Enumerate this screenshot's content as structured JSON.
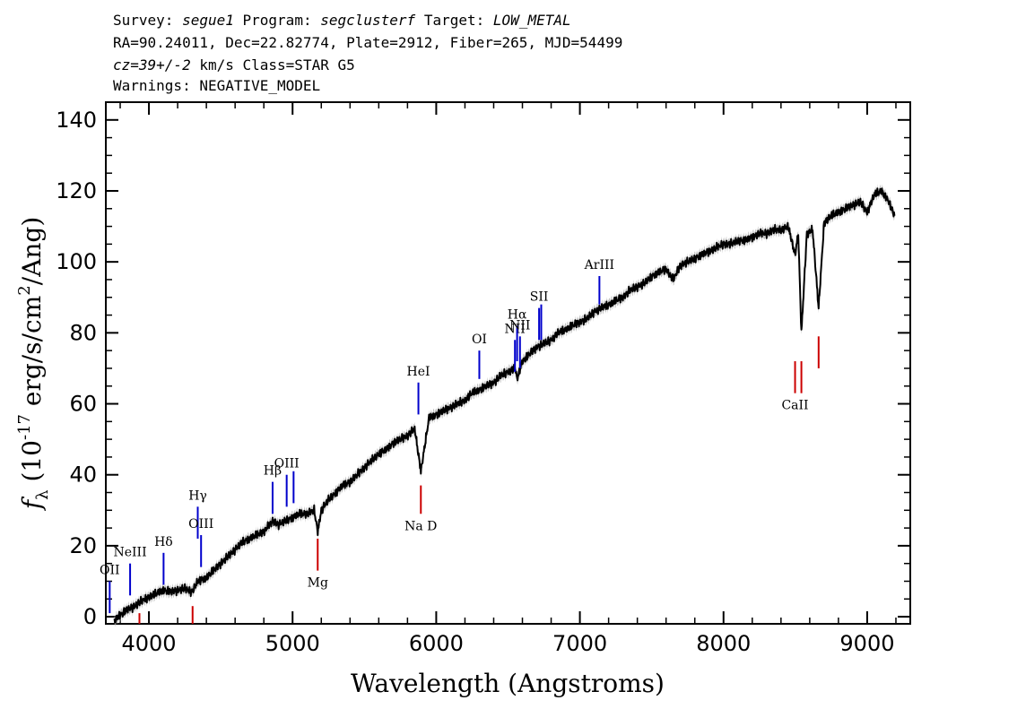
{
  "header": {
    "survey_label": "Survey:",
    "survey": "segue1",
    "program_label": "Program:",
    "program": "segclusterf",
    "target_label": "Target:",
    "target": "LOW_METAL",
    "line2": "RA=90.24011, Dec=22.82774, Plate=2912, Fiber=265, MJD=54499",
    "cz": "cz=39+/-2",
    "line3_rest": "km/s Class=STAR G5",
    "line4": "Warnings: NEGATIVE_MODEL"
  },
  "chart_data": {
    "type": "line",
    "xlabel": "Wavelength (Angstroms)",
    "ylabel": "f_λ (10^-17 erg/s/cm^2/Ang)",
    "xlim": [
      3700,
      9300
    ],
    "ylim": [
      -2,
      145
    ],
    "xticks": [
      4000,
      5000,
      6000,
      7000,
      8000,
      9000
    ],
    "yticks": [
      0,
      20,
      40,
      60,
      80,
      100,
      120,
      140
    ],
    "colors": {
      "spectrum": "#000000",
      "error_band": "#b0b0b0",
      "emission": "#0000cc",
      "absorption": "#cc0000"
    },
    "series": [
      {
        "x": [
          3760,
          3800,
          3850,
          3900,
          3950,
          4000,
          4050,
          4100,
          4150,
          4200,
          4250,
          4300,
          4340,
          4400,
          4450,
          4500,
          4550,
          4600,
          4650,
          4700,
          4750,
          4800,
          4861,
          4900,
          4950,
          5000,
          5050,
          5100,
          5150,
          5175,
          5200,
          5250,
          5300,
          5350,
          5400,
          5450,
          5500,
          5550,
          5600,
          5650,
          5700,
          5750,
          5800,
          5850,
          5893,
          5950,
          6000,
          6050,
          6100,
          6150,
          6200,
          6250,
          6300,
          6350,
          6400,
          6450,
          6500,
          6550,
          6563,
          6600,
          6650,
          6700,
          6750,
          6800,
          6850,
          6900,
          6950,
          7000,
          7050,
          7100,
          7150,
          7200,
          7250,
          7300,
          7350,
          7400,
          7450,
          7500,
          7550,
          7600,
          7650,
          7700,
          7750,
          7800,
          7850,
          7900,
          7950,
          8000,
          8050,
          8100,
          8150,
          8200,
          8250,
          8300,
          8350,
          8400,
          8450,
          8498,
          8520,
          8542,
          8580,
          8620,
          8662,
          8700,
          8750,
          8800,
          8850,
          8900,
          8950,
          9000,
          9050,
          9100,
          9150,
          9190
        ],
        "y": [
          -1,
          0.5,
          2,
          3,
          4.5,
          5.5,
          6.5,
          7.5,
          7,
          7.5,
          8,
          7,
          10,
          11,
          13,
          15,
          17,
          19,
          21,
          22,
          23,
          24,
          27,
          26,
          27,
          28,
          29,
          29,
          30,
          24,
          30,
          33,
          35,
          37,
          38,
          40,
          42,
          44,
          46,
          47,
          49,
          50,
          51,
          53,
          41,
          56,
          57,
          58,
          59,
          60,
          61,
          63,
          64,
          65,
          66,
          68,
          69,
          70,
          67,
          72,
          74,
          76,
          77,
          78,
          80,
          81,
          82,
          83,
          84,
          86,
          87,
          88,
          89,
          90,
          92,
          93,
          94,
          96,
          97,
          98,
          95,
          99,
          100,
          101,
          102,
          103,
          104,
          105,
          105,
          106,
          106,
          107,
          108,
          108,
          109,
          109,
          110,
          102,
          108,
          80,
          108,
          109,
          87,
          111,
          113,
          114,
          115,
          116,
          117,
          114,
          119,
          120,
          117,
          113
        ]
      }
    ],
    "line_markers": [
      {
        "label": "OII",
        "type": "emission",
        "x": 3727,
        "y_lo": 1,
        "y_hi": 10
      },
      {
        "label": "NeIII",
        "type": "emission",
        "x": 3869,
        "y_lo": 6,
        "y_hi": 15
      },
      {
        "label": "Hδ",
        "type": "emission",
        "x": 4102,
        "y_lo": 9,
        "y_hi": 18
      },
      {
        "label": "Hγ",
        "type": "emission",
        "x": 4340,
        "y_lo": 22,
        "y_hi": 31
      },
      {
        "label": "OIII",
        "type": "emission",
        "x": 4363,
        "y_lo": 14,
        "y_hi": 23
      },
      {
        "label": "Hβ",
        "type": "emission",
        "x": 4861,
        "y_lo": 29,
        "y_hi": 38
      },
      {
        "label": "OIII",
        "type": "emission",
        "x": 4959,
        "y_lo": 31,
        "y_hi": 40
      },
      {
        "label": "",
        "type": "emission",
        "x": 5007,
        "y_lo": 32,
        "y_hi": 41
      },
      {
        "label": "HeI",
        "type": "emission",
        "x": 5876,
        "y_lo": 57,
        "y_hi": 66
      },
      {
        "label": "OI",
        "type": "emission",
        "x": 6300,
        "y_lo": 67,
        "y_hi": 75
      },
      {
        "label": "NII",
        "type": "emission",
        "x": 6548,
        "y_lo": 69,
        "y_hi": 78
      },
      {
        "label": "Hα",
        "type": "emission",
        "x": 6563,
        "y_lo": 72,
        "y_hi": 82
      },
      {
        "label": "NII",
        "type": "emission",
        "x": 6583,
        "y_lo": 70,
        "y_hi": 79
      },
      {
        "label": "SII",
        "type": "emission",
        "x": 6716,
        "y_lo": 78,
        "y_hi": 87
      },
      {
        "label": "",
        "type": "emission",
        "x": 6731,
        "y_lo": 78,
        "y_hi": 88
      },
      {
        "label": "ArIII",
        "type": "emission",
        "x": 7136,
        "y_lo": 88,
        "y_hi": 96
      },
      {
        "label": "",
        "type": "absorption",
        "x": 3934,
        "y_lo": -2,
        "y_hi": 1
      },
      {
        "label": "",
        "type": "absorption",
        "x": 4304,
        "y_lo": -2,
        "y_hi": 3
      },
      {
        "label": "Mg",
        "type": "absorption",
        "x": 5175,
        "y_lo": 13,
        "y_hi": 22
      },
      {
        "label": "Na D",
        "type": "absorption",
        "x": 5893,
        "y_lo": 29,
        "y_hi": 37
      },
      {
        "label": "CaII",
        "type": "absorption",
        "x": 8498,
        "y_lo": 63,
        "y_hi": 72
      },
      {
        "label": "",
        "type": "absorption",
        "x": 8542,
        "y_lo": 63,
        "y_hi": 72
      },
      {
        "label": "",
        "type": "absorption",
        "x": 8662,
        "y_lo": 70,
        "y_hi": 79
      }
    ]
  }
}
